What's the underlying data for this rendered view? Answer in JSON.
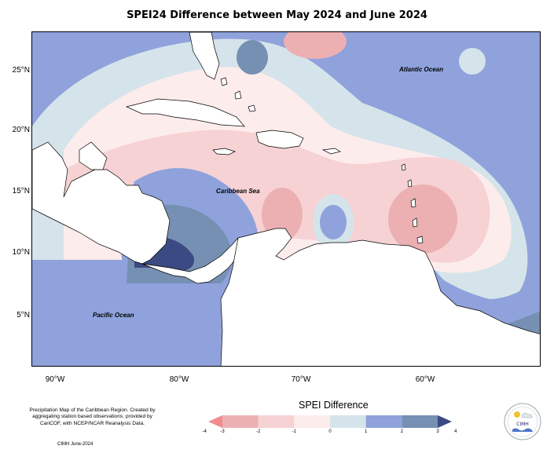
{
  "title": "SPEI24 Difference between May 2024 and June 2024",
  "latitude_labels": [
    "25°N",
    "20°N",
    "15°N",
    "10°N",
    "5°N"
  ],
  "longitude_labels": [
    "90°W",
    "80°W",
    "70°W",
    "60°W"
  ],
  "ocean_labels": {
    "atlantic": "Atlantic Ocean",
    "caribbean": "Caribbean Sea",
    "pacific": "Pacific Ocean"
  },
  "legend": {
    "title": "SPEI Difference",
    "ticks": [
      "-4",
      "-3",
      "-2",
      "-1",
      "0",
      "1",
      "2",
      "3",
      "4"
    ],
    "colors": [
      "#f28b8e",
      "#ecb0b3",
      "#f6d2d4",
      "#fdecec",
      "#d5e4ea",
      "#8fa2dc",
      "#7590b3",
      "#3c4a83"
    ]
  },
  "credits": {
    "text": "Precipitation Map of the Caribbean Region. Created by aggregating station based observations, provided by CariCOF, with NCEP/NCAR Reanalysis Data.",
    "date": "CIMH June-2024"
  },
  "logo_text": "CIMH"
}
